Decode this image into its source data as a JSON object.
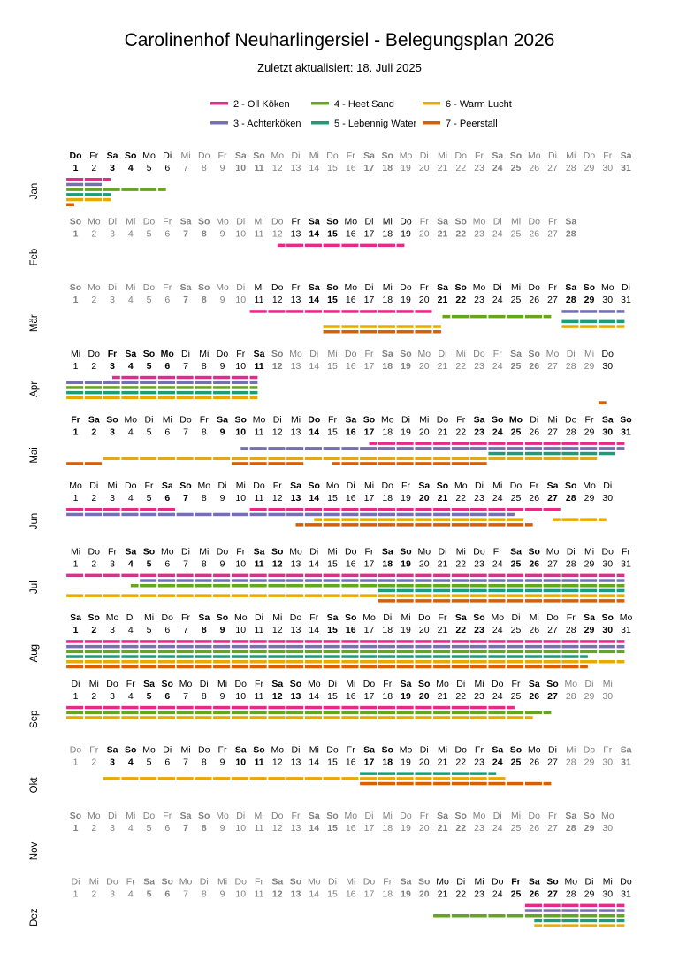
{
  "title": "Carolinenhof Neuharlingersiel - Belegungsplan 2026",
  "subtitle": "Zuletzt aktualisiert: 18. Juli 2025",
  "chart_data": {
    "type": "timeline",
    "year": 2026,
    "legend": [
      {
        "name": "2 - Oll Köken",
        "color": "#e7298a"
      },
      {
        "name": "3 - Achterköken",
        "color": "#7570b3"
      },
      {
        "name": "4 - Heet Sand",
        "color": "#66a61e"
      },
      {
        "name": "5 - Lebennig Water",
        "color": "#1b9e77"
      },
      {
        "name": "6 - Warm Lucht",
        "color": "#e6ab02"
      },
      {
        "name": "7 - Peerstall",
        "color": "#d95f02"
      }
    ],
    "weekday_labels": [
      "Mo",
      "Di",
      "Mi",
      "Do",
      "Fr",
      "Sa",
      "So"
    ],
    "months": [
      {
        "label": "Jan",
        "days": 31,
        "first_weekday": 3,
        "holidays": [
          1
        ]
      },
      {
        "label": "Feb",
        "days": 28,
        "first_weekday": 6,
        "holidays": []
      },
      {
        "label": "Mär",
        "days": 31,
        "first_weekday": 6,
        "holidays": []
      },
      {
        "label": "Apr",
        "days": 30,
        "first_weekday": 2,
        "holidays": [
          3,
          6
        ]
      },
      {
        "label": "Mai",
        "days": 31,
        "first_weekday": 4,
        "holidays": [
          1,
          14,
          25
        ]
      },
      {
        "label": "Jun",
        "days": 30,
        "first_weekday": 0,
        "holidays": []
      },
      {
        "label": "Jul",
        "days": 31,
        "first_weekday": 2,
        "holidays": []
      },
      {
        "label": "Aug",
        "days": 31,
        "first_weekday": 5,
        "holidays": []
      },
      {
        "label": "Sep",
        "days": 30,
        "first_weekday": 1,
        "holidays": []
      },
      {
        "label": "Okt",
        "days": 31,
        "first_weekday": 3,
        "holidays": []
      },
      {
        "label": "Nov",
        "days": 30,
        "first_weekday": 6,
        "holidays": []
      },
      {
        "label": "Dez",
        "days": 31,
        "first_weekday": 1,
        "holidays": [
          25
        ]
      }
    ],
    "bookings": [
      {
        "m": 1,
        "apt": 2,
        "lane": 0,
        "from": 1,
        "to": 3
      },
      {
        "m": 1,
        "apt": 2,
        "lane": 0,
        "from": 3,
        "to": 3.5
      },
      {
        "m": 1,
        "apt": 3,
        "lane": 1,
        "from": 1,
        "to": 3
      },
      {
        "m": 1,
        "apt": 4,
        "lane": 2,
        "from": 1,
        "to": 6.5
      },
      {
        "m": 1,
        "apt": 5,
        "lane": 3,
        "from": 1,
        "to": 3.5
      },
      {
        "m": 1,
        "apt": 6,
        "lane": 4,
        "from": 1,
        "to": 3.5
      },
      {
        "m": 1,
        "apt": 7,
        "lane": 5,
        "from": 1,
        "to": 1.5
      },
      {
        "m": 2,
        "apt": 2,
        "lane": 0,
        "from": 12.5,
        "to": 19.5
      },
      {
        "m": 3,
        "apt": 2,
        "lane": 0,
        "from": 11,
        "to": 21
      },
      {
        "m": 3,
        "apt": 3,
        "lane": 0,
        "from": 28,
        "to": 31.5
      },
      {
        "m": 3,
        "apt": 4,
        "lane": 1,
        "from": 21.5,
        "to": 27.5
      },
      {
        "m": 3,
        "apt": 5,
        "lane": 2,
        "from": 28,
        "to": 31.5
      },
      {
        "m": 3,
        "apt": 6,
        "lane": 3,
        "from": 15,
        "to": 21.5
      },
      {
        "m": 3,
        "apt": 6,
        "lane": 3,
        "from": 28,
        "to": 31.5
      },
      {
        "m": 3,
        "apt": 7,
        "lane": 4,
        "from": 15,
        "to": 21.5
      },
      {
        "m": 4,
        "apt": 2,
        "lane": 0,
        "from": 3.5,
        "to": 11.5
      },
      {
        "m": 4,
        "apt": 3,
        "lane": 1,
        "from": 1,
        "to": 11.5
      },
      {
        "m": 4,
        "apt": 4,
        "lane": 2,
        "from": 1,
        "to": 11.5
      },
      {
        "m": 4,
        "apt": 5,
        "lane": 3,
        "from": 1,
        "to": 11.5
      },
      {
        "m": 4,
        "apt": 6,
        "lane": 4,
        "from": 1,
        "to": 11.5
      },
      {
        "m": 4,
        "apt": 7,
        "lane": 5,
        "from": 30,
        "to": 30.5
      },
      {
        "m": 5,
        "apt": 2,
        "lane": 0,
        "from": 17.5,
        "to": 31.5
      },
      {
        "m": 5,
        "apt": 3,
        "lane": 1,
        "from": 10.5,
        "to": 31.5
      },
      {
        "m": 5,
        "apt": 5,
        "lane": 2,
        "from": 24,
        "to": 31
      },
      {
        "m": 5,
        "apt": 6,
        "lane": 3,
        "from": 3,
        "to": 30
      },
      {
        "m": 5,
        "apt": 7,
        "lane": 4,
        "from": 1,
        "to": 3
      },
      {
        "m": 5,
        "apt": 7,
        "lane": 4,
        "from": 10,
        "to": 14
      },
      {
        "m": 5,
        "apt": 7,
        "lane": 4,
        "from": 15.5,
        "to": 24
      },
      {
        "m": 6,
        "apt": 2,
        "lane": 0,
        "from": 1,
        "to": 7
      },
      {
        "m": 6,
        "apt": 2,
        "lane": 0,
        "from": 11,
        "to": 28
      },
      {
        "m": 6,
        "apt": 3,
        "lane": 1,
        "from": 1,
        "to": 25.5
      },
      {
        "m": 6,
        "apt": 6,
        "lane": 2,
        "from": 14.5,
        "to": 26
      },
      {
        "m": 6,
        "apt": 6,
        "lane": 2,
        "from": 27.5,
        "to": 30.5
      },
      {
        "m": 6,
        "apt": 7,
        "lane": 3,
        "from": 13.5,
        "to": 26.5
      },
      {
        "m": 7,
        "apt": 2,
        "lane": 0,
        "from": 1,
        "to": 31.5
      },
      {
        "m": 7,
        "apt": 3,
        "lane": 1,
        "from": 5,
        "to": 31.5
      },
      {
        "m": 7,
        "apt": 4,
        "lane": 2,
        "from": 4.5,
        "to": 31.5
      },
      {
        "m": 7,
        "apt": 5,
        "lane": 3,
        "from": 18,
        "to": 31.5
      },
      {
        "m": 7,
        "apt": 6,
        "lane": 4,
        "from": 1,
        "to": 31.5
      },
      {
        "m": 7,
        "apt": 7,
        "lane": 5,
        "from": 18,
        "to": 31.5
      },
      {
        "m": 8,
        "apt": 2,
        "lane": 0,
        "from": 1,
        "to": 31.5
      },
      {
        "m": 8,
        "apt": 3,
        "lane": 1,
        "from": 1,
        "to": 31.5
      },
      {
        "m": 8,
        "apt": 4,
        "lane": 2,
        "from": 1,
        "to": 31.5
      },
      {
        "m": 8,
        "apt": 5,
        "lane": 3,
        "from": 1,
        "to": 29.5
      },
      {
        "m": 8,
        "apt": 6,
        "lane": 4,
        "from": 1,
        "to": 31.5
      },
      {
        "m": 8,
        "apt": 7,
        "lane": 5,
        "from": 1,
        "to": 29.5
      },
      {
        "m": 9,
        "apt": 2,
        "lane": 0,
        "from": 1,
        "to": 25.5
      },
      {
        "m": 9,
        "apt": 4,
        "lane": 1,
        "from": 1,
        "to": 27.5
      },
      {
        "m": 9,
        "apt": 6,
        "lane": 2,
        "from": 1,
        "to": 26.5
      },
      {
        "m": 10,
        "apt": 5,
        "lane": 0,
        "from": 17,
        "to": 24.5
      },
      {
        "m": 10,
        "apt": 6,
        "lane": 1,
        "from": 3,
        "to": 25
      },
      {
        "m": 10,
        "apt": 7,
        "lane": 2,
        "from": 17,
        "to": 27.5
      },
      {
        "m": 12,
        "apt": 2,
        "lane": 0,
        "from": 26,
        "to": 31.5
      },
      {
        "m": 12,
        "apt": 3,
        "lane": 1,
        "from": 26,
        "to": 31.5
      },
      {
        "m": 12,
        "apt": 4,
        "lane": 2,
        "from": 21,
        "to": 31.5
      },
      {
        "m": 12,
        "apt": 5,
        "lane": 3,
        "from": 26.5,
        "to": 31.5
      },
      {
        "m": 12,
        "apt": 6,
        "lane": 4,
        "from": 26.5,
        "to": 31.5
      }
    ]
  }
}
